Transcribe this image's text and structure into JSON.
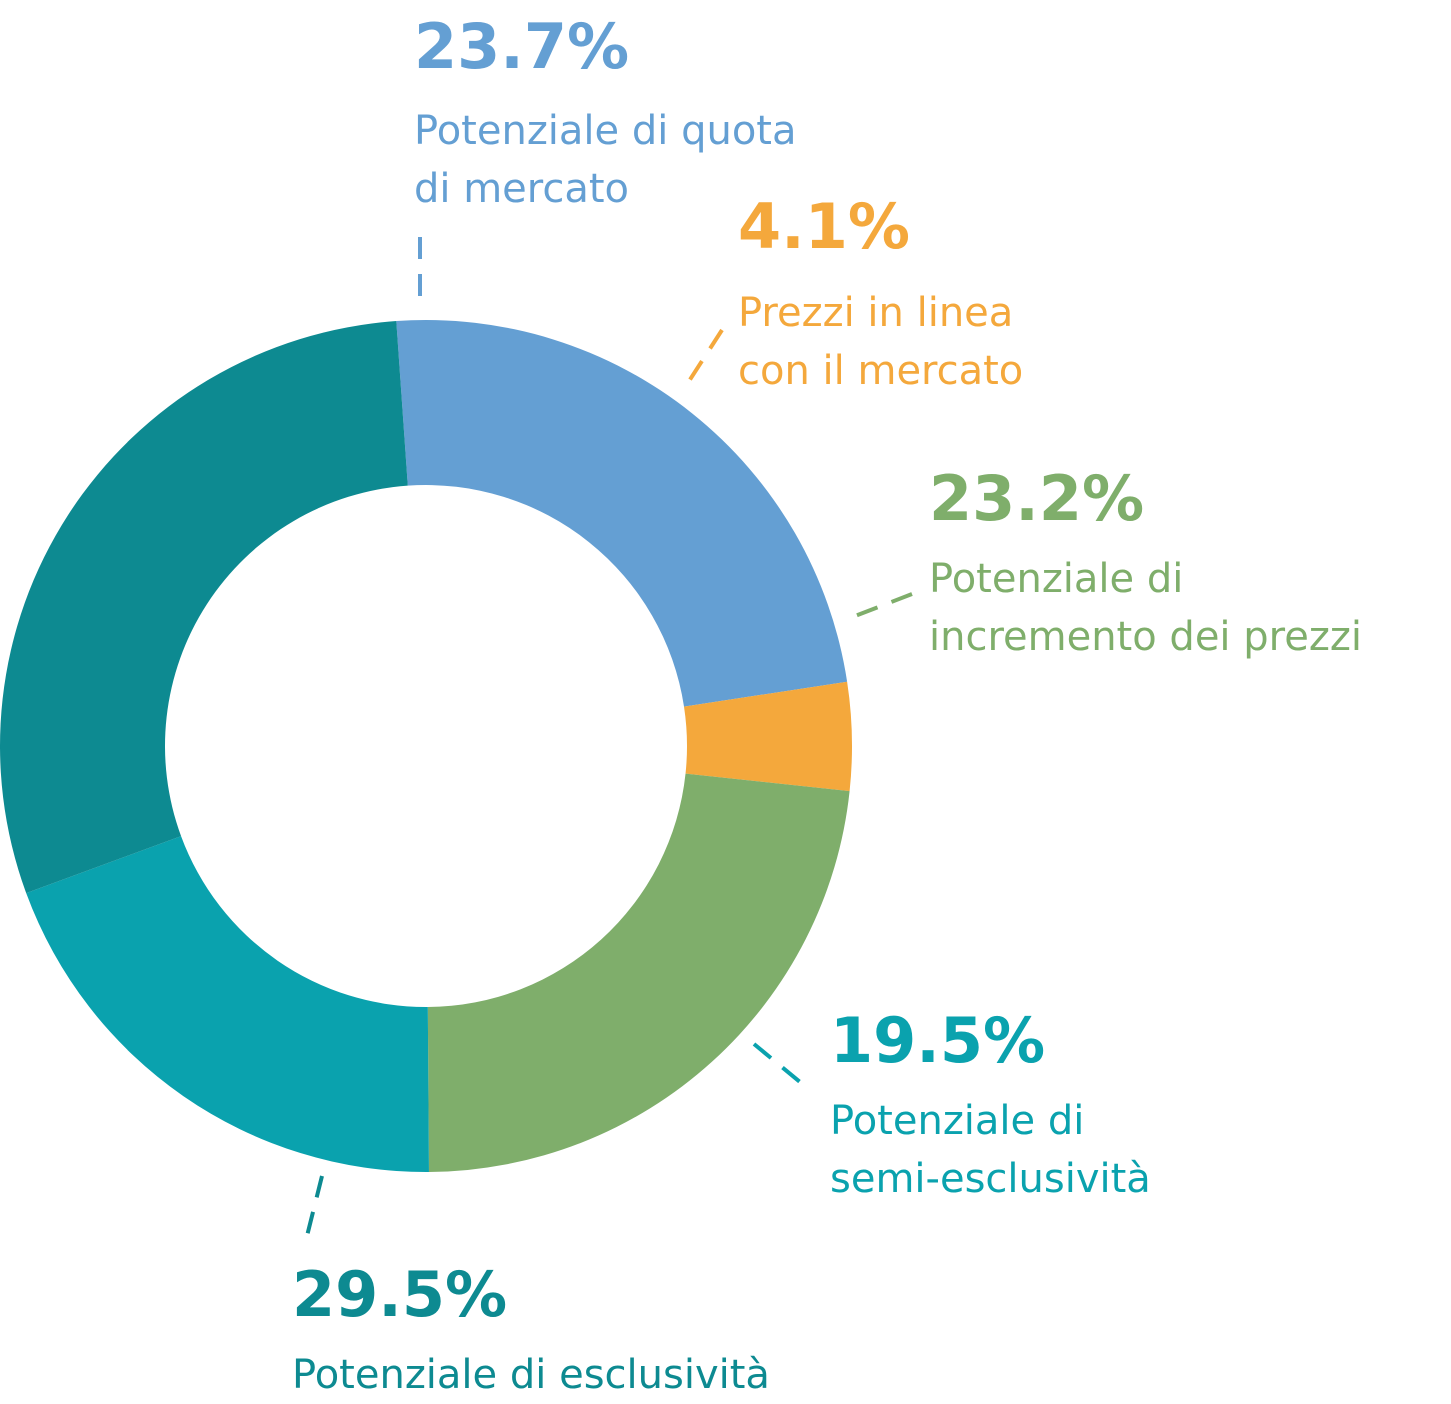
{
  "chart_data": {
    "type": "pie",
    "variant": "donut",
    "start_angle_deg": -4,
    "direction": "clockwise",
    "slices": [
      {
        "value": 23.7,
        "value_label": "23.7%",
        "label": [
          "Potenziale di quota",
          "di mercato"
        ],
        "color": "#649fd3"
      },
      {
        "value": 4.1,
        "value_label": "4.1%",
        "label": [
          "Prezzi in linea",
          "con il mercato"
        ],
        "color": "#f4a83c"
      },
      {
        "value": 23.2,
        "value_label": "23.2%",
        "label": [
          "Potenziale di",
          "incremento dei prezzi"
        ],
        "color": "#7fae6b"
      },
      {
        "value": 19.5,
        "value_label": "19.5%",
        "label": [
          "Potenziale di",
          "semi-esclusività"
        ],
        "color": "#0aa2ae"
      },
      {
        "value": 29.5,
        "value_label": "29.5%",
        "label": [
          "Potenziale di esclusività"
        ],
        "color": "#0d8a91"
      }
    ]
  }
}
